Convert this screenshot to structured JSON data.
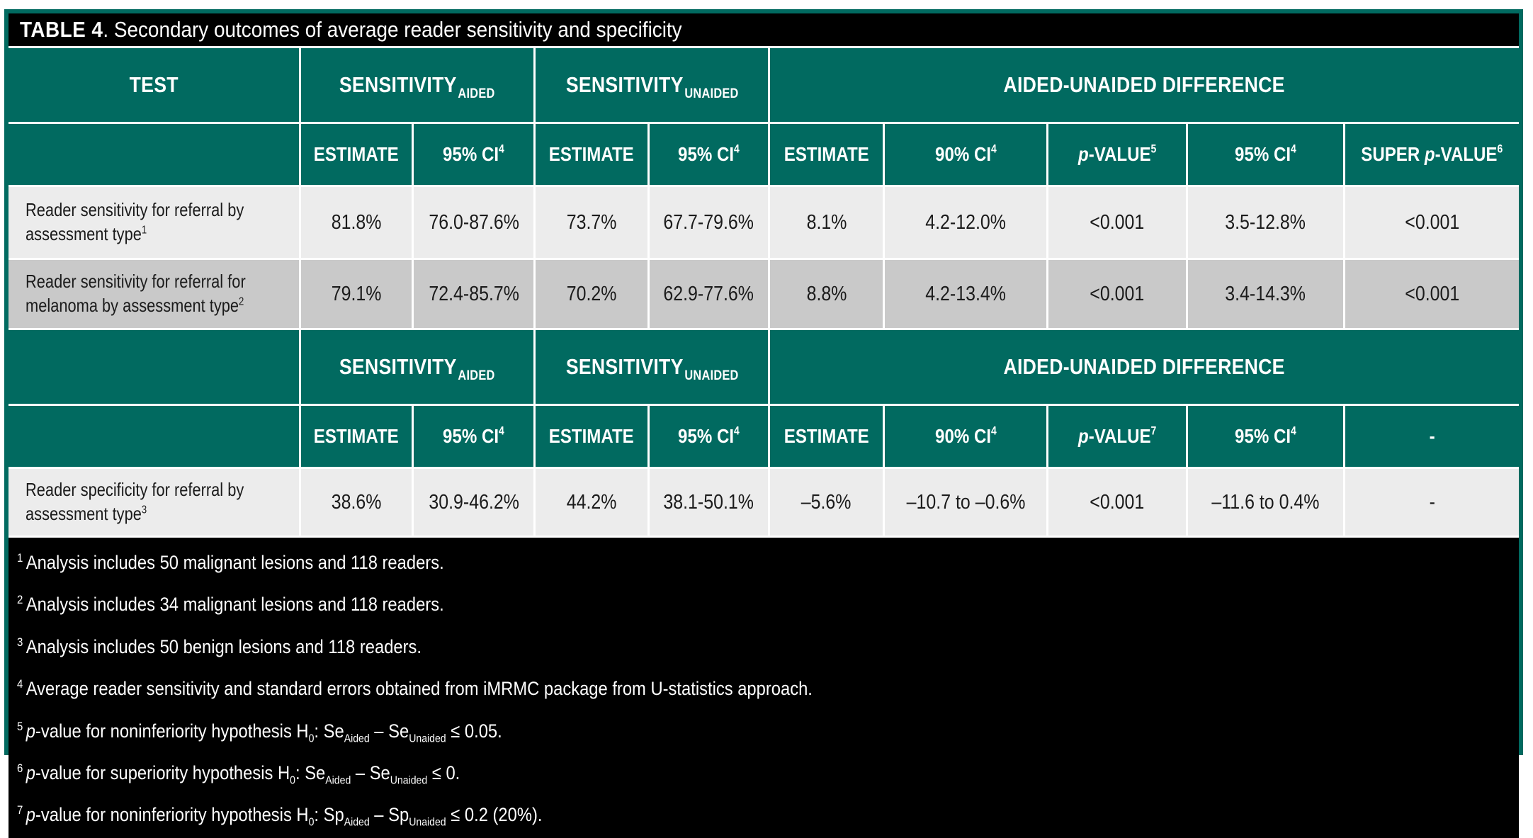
{
  "colors": {
    "teal_header": "#016a60",
    "title_black": "#000000",
    "row_light": "#ececec",
    "row_dark": "#c9c9c9",
    "text_white": "#ffffff",
    "text_dark": "#1b1b1b"
  },
  "title": {
    "bold": "TABLE 4",
    "rest": ". Secondary outcomes of average reader sensitivity and specificity"
  },
  "block1": {
    "test_header": "TEST",
    "groups": [
      {
        "label": "SENSITIVITY",
        "sub": "AIDED"
      },
      {
        "label": "SENSITIVITY",
        "sub": "UNAIDED"
      },
      {
        "label": "AIDED-UNAIDED DIFFERENCE",
        "sub": ""
      }
    ],
    "cols": [
      {
        "pre": "",
        "it": "",
        "text": "ESTIMATE",
        "sup": ""
      },
      {
        "pre": "",
        "it": "",
        "text": "95% CI",
        "sup": "4"
      },
      {
        "pre": "",
        "it": "",
        "text": "ESTIMATE",
        "sup": ""
      },
      {
        "pre": "",
        "it": "",
        "text": "95% CI",
        "sup": "4"
      },
      {
        "pre": "",
        "it": "",
        "text": "ESTIMATE",
        "sup": ""
      },
      {
        "pre": "",
        "it": "",
        "text": "90% CI",
        "sup": "4"
      },
      {
        "pre": "",
        "it": "p",
        "text": "-VALUE",
        "sup": "5"
      },
      {
        "pre": "",
        "it": "",
        "text": "95% CI",
        "sup": "4"
      },
      {
        "pre": "SUPER ",
        "it": "p",
        "text": "-VALUE",
        "sup": "6"
      }
    ],
    "rows": [
      {
        "label": "Reader sensitivity for referral by assessment type",
        "label_sup": "1",
        "cells": [
          "81.8%",
          "76.0-87.6%",
          "73.7%",
          "67.7-79.6%",
          "8.1%",
          "4.2-12.0%",
          "<0.001",
          "3.5-12.8%",
          "<0.001"
        ]
      },
      {
        "label": "Reader sensitivity for referral for melanoma by assessment type",
        "label_sup": "2",
        "cells": [
          "79.1%",
          "72.4-85.7%",
          "70.2%",
          "62.9-77.6%",
          "8.8%",
          "4.2-13.4%",
          "<0.001",
          "3.4-14.3%",
          "<0.001"
        ]
      }
    ]
  },
  "block2": {
    "groups": [
      {
        "label": "SENSITIVITY",
        "sub": "AIDED"
      },
      {
        "label": "SENSITIVITY",
        "sub": "UNAIDED"
      },
      {
        "label": "AIDED-UNAIDED DIFFERENCE",
        "sub": ""
      }
    ],
    "cols": [
      {
        "pre": "",
        "it": "",
        "text": "ESTIMATE",
        "sup": ""
      },
      {
        "pre": "",
        "it": "",
        "text": "95% CI",
        "sup": "4"
      },
      {
        "pre": "",
        "it": "",
        "text": "ESTIMATE",
        "sup": ""
      },
      {
        "pre": "",
        "it": "",
        "text": "95% CI",
        "sup": "4"
      },
      {
        "pre": "",
        "it": "",
        "text": "ESTIMATE",
        "sup": ""
      },
      {
        "pre": "",
        "it": "",
        "text": "90% CI",
        "sup": "4"
      },
      {
        "pre": "",
        "it": "p",
        "text": "-VALUE",
        "sup": "7"
      },
      {
        "pre": "",
        "it": "",
        "text": "95% CI",
        "sup": "4"
      },
      {
        "pre": "",
        "it": "",
        "text": "-",
        "sup": ""
      }
    ],
    "rows": [
      {
        "label": "Reader specificity for referral by assessment type",
        "label_sup": "3",
        "cells": [
          "38.6%",
          "30.9-46.2%",
          "44.2%",
          "38.1-50.1%",
          "–5.6%",
          "–10.7 to –0.6%",
          "<0.001",
          "–11.6 to 0.4%",
          "-"
        ]
      }
    ]
  },
  "footnotes": [
    {
      "sup": "1",
      "it": "",
      "t1": "Analysis includes 50 malignant lesions and 118 readers.",
      "s1": "",
      "t2": "",
      "s2": "",
      "t3": "",
      "s3": "",
      "t4": ""
    },
    {
      "sup": "2",
      "it": "",
      "t1": "Analysis includes 34 malignant lesions and 118 readers.",
      "s1": "",
      "t2": "",
      "s2": "",
      "t3": "",
      "s3": "",
      "t4": ""
    },
    {
      "sup": "3",
      "it": "",
      "t1": "Analysis includes 50 benign lesions and 118 readers.",
      "s1": "",
      "t2": "",
      "s2": "",
      "t3": "",
      "s3": "",
      "t4": ""
    },
    {
      "sup": "4",
      "it": "",
      "t1": "Average reader sensitivity and standard errors obtained from iMRMC package from U-statistics approach.",
      "s1": "",
      "t2": "",
      "s2": "",
      "t3": "",
      "s3": "",
      "t4": ""
    },
    {
      "sup": "5",
      "it": "p",
      "t1": "-value for noninferiority hypothesis H",
      "s1": "0",
      "t2": ": Se",
      "s2": "Aided",
      "t3": " – Se",
      "s3": "Unaided",
      "t4": " ≤ 0.05."
    },
    {
      "sup": "6",
      "it": "p",
      "t1": "-value for superiority hypothesis H",
      "s1": "0",
      "t2": ": Se",
      "s2": "Aided",
      "t3": " – Se",
      "s3": "Unaided",
      "t4": " ≤ 0."
    },
    {
      "sup": "7",
      "it": "p",
      "t1": "-value for noninferiority hypothesis H",
      "s1": "0",
      "t2": ": Sp",
      "s2": "Aided",
      "t3": " – Sp",
      "s3": "Unaided",
      "t4": " ≤ 0.2 (20%)."
    }
  ]
}
